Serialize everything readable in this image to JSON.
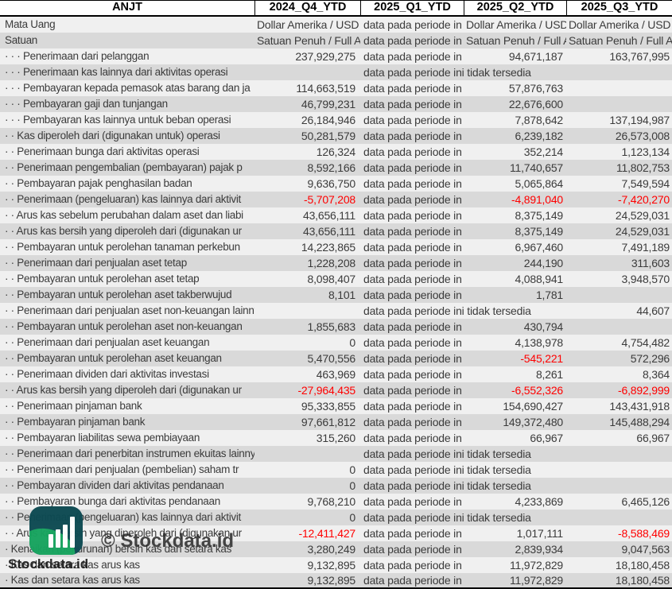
{
  "header": {
    "columns": [
      "ANJT",
      "2024_Q4_YTD",
      "2025_Q1_YTD",
      "2025_Q2_YTD",
      "2025_Q3_YTD"
    ]
  },
  "placeholders": {
    "clipped": "data pada periode in",
    "full": "data pada periode ini tidak tersedia"
  },
  "rows": [
    {
      "label": "Mata Uang",
      "q4": "Dollar Amerika / USD",
      "q1": "data pada periode in",
      "q2": "Dollar Amerika / USD",
      "q3": "Dollar Amerika / USD",
      "text_row": true
    },
    {
      "label": "Satuan",
      "q4": "Satuan Penuh / Full A",
      "q1": "data pada periode in",
      "q2": "Satuan Penuh / Full A",
      "q3": "Satuan Penuh / Full A",
      "text_row": true
    },
    {
      "label": "· · · Penerimaan dari pelanggan",
      "q4": "237,929,275",
      "q1": "data pada periode in",
      "q2": "94,671,187",
      "q3": "163,767,995"
    },
    {
      "label": "· · · Penerimaan kas lainnya dari aktivitas operasi",
      "q4": "",
      "q1": "data pada periode ini tidak tersedia",
      "q2": "",
      "q3": ""
    },
    {
      "label": "· · · Pembayaran kepada pemasok atas barang dan ja",
      "q4": "114,663,519",
      "q1": "data pada periode in",
      "q2": "57,876,763",
      "q3": ""
    },
    {
      "label": "· · · Pembayaran gaji dan tunjangan",
      "q4": "46,799,231",
      "q1": "data pada periode in",
      "q2": "22,676,600",
      "q3": ""
    },
    {
      "label": "· · · Pembayaran kas lainnya untuk beban operasi",
      "q4": "26,184,946",
      "q1": "data pada periode in",
      "q2": "7,878,642",
      "q3": "137,194,987"
    },
    {
      "label": "· · Kas diperoleh dari (digunakan untuk) operasi",
      "q4": "50,281,579",
      "q1": "data pada periode in",
      "q2": "6,239,182",
      "q3": "26,573,008"
    },
    {
      "label": "· · Penerimaan bunga dari aktivitas operasi",
      "q4": "126,324",
      "q1": "data pada periode in",
      "q2": "352,214",
      "q3": "1,123,134"
    },
    {
      "label": "· · Penerimaan pengembalian (pembayaran) pajak p",
      "q4": "8,592,166",
      "q1": "data pada periode in",
      "q2": "11,740,657",
      "q3": "11,802,753"
    },
    {
      "label": "· · Pembayaran pajak penghasilan badan",
      "q4": "9,636,750",
      "q1": "data pada periode in",
      "q2": "5,065,864",
      "q3": "7,549,594"
    },
    {
      "label": "· · Penerimaan (pengeluaran) kas lainnya dari aktivit",
      "q4": "-5,707,208",
      "q1": "data pada periode in",
      "q2": "-4,891,040",
      "q3": "-7,420,270"
    },
    {
      "label": "· · Arus kas sebelum perubahan dalam aset dan liabi",
      "q4": "43,656,111",
      "q1": "data pada periode in",
      "q2": "8,375,149",
      "q3": "24,529,031"
    },
    {
      "label": "· · Arus kas bersih yang diperoleh dari (digunakan ur",
      "q4": "43,656,111",
      "q1": "data pada periode in",
      "q2": "8,375,149",
      "q3": "24,529,031"
    },
    {
      "label": "· · Pembayaran untuk perolehan tanaman perkebun",
      "q4": "14,223,865",
      "q1": "data pada periode in",
      "q2": "6,967,460",
      "q3": "7,491,189"
    },
    {
      "label": "· · Penerimaan dari penjualan aset tetap",
      "q4": "1,228,208",
      "q1": "data pada periode in",
      "q2": "244,190",
      "q3": "311,603"
    },
    {
      "label": "· · Pembayaran untuk perolehan aset tetap",
      "q4": "8,098,407",
      "q1": "data pada periode in",
      "q2": "4,088,941",
      "q3": "3,948,570"
    },
    {
      "label": "· · Pembayaran untuk perolehan aset takberwujud",
      "q4": "8,101",
      "q1": "data pada periode in",
      "q2": "1,781",
      "q3": ""
    },
    {
      "label": "· · Penerimaan dari penjualan aset non-keuangan lainnya",
      "q4": "",
      "q1": "data pada periode ini tidak tersedia",
      "q2": "",
      "q3": "44,607"
    },
    {
      "label": "· · Pembayaran untuk perolehan aset non-keuangan",
      "q4": "1,855,683",
      "q1": "data pada periode in",
      "q2": "430,794",
      "q3": ""
    },
    {
      "label": "· · Penerimaan dari penjualan aset keuangan",
      "q4": "0",
      "q1": "data pada periode in",
      "q2": "4,138,978",
      "q3": "4,754,482"
    },
    {
      "label": "· · Pembayaran untuk perolehan aset keuangan",
      "q4": "5,470,556",
      "q1": "data pada periode in",
      "q2": "-545,221",
      "q3": "572,296"
    },
    {
      "label": "· · Penerimaan dividen dari aktivitas investasi",
      "q4": "463,969",
      "q1": "data pada periode in",
      "q2": "8,261",
      "q3": "8,364"
    },
    {
      "label": "· · Arus kas bersih yang diperoleh dari (digunakan ur",
      "q4": "-27,964,435",
      "q1": "data pada periode in",
      "q2": "-6,552,326",
      "q3": "-6,892,999"
    },
    {
      "label": "· · Penerimaan pinjaman bank",
      "q4": "95,333,855",
      "q1": "data pada periode in",
      "q2": "154,690,427",
      "q3": "143,431,918"
    },
    {
      "label": "· · Pembayaran pinjaman bank",
      "q4": "97,661,812",
      "q1": "data pada periode in",
      "q2": "149,372,480",
      "q3": "145,488,294"
    },
    {
      "label": "· · Pembayaran liabilitas sewa pembiayaan",
      "q4": "315,260",
      "q1": "data pada periode in",
      "q2": "66,967",
      "q3": "66,967"
    },
    {
      "label": "· · Penerimaan dari penerbitan instrumen ekuitas lainnya",
      "q4": "",
      "q1": "data pada periode ini tidak tersedia",
      "q2": "",
      "q3": ""
    },
    {
      "label": "· · Penerimaan dari penjualan (pembelian) saham tr",
      "q4": "0",
      "q1": "data pada periode ini tidak tersedia",
      "q2": "",
      "q3": ""
    },
    {
      "label": "· · Pembayaran dividen dari aktivitas pendanaan",
      "q4": "0",
      "q1": "data pada periode ini tidak tersedia",
      "q2": "",
      "q3": ""
    },
    {
      "label": "· · Pembayaran bunga dari aktivitas pendanaan",
      "q4": "9,768,210",
      "q1": "data pada periode in",
      "q2": "4,233,869",
      "q3": "6,465,126"
    },
    {
      "label": "· · Penerimaan (pengeluaran) kas lainnya dari aktivit",
      "q4": "0",
      "q1": "data pada periode ini tidak tersedia",
      "q2": "",
      "q3": ""
    },
    {
      "label": "· · Arus kas bersih yang diperoleh dari (digunakan ur",
      "q4": "-12,411,427",
      "q1": "data pada periode in",
      "q2": "1,017,111",
      "q3": "-8,588,469"
    },
    {
      "label": "· Kenaikan (penurunan) bersih kas dan setara kas",
      "q4": "3,280,249",
      "q1": "data pada periode in",
      "q2": "2,839,934",
      "q3": "9,047,563"
    },
    {
      "label": "· Kas dan setara kas arus kas",
      "q4": "9,132,895",
      "q1": "data pada periode in",
      "q2": "11,972,829",
      "q3": "18,180,458"
    },
    {
      "label": "· Kas dan setara kas arus kas",
      "q4": "9,132,895",
      "q1": "data pada periode in",
      "q2": "11,972,829",
      "q3": "18,180,458"
    }
  ],
  "watermark": {
    "copyright": "© Stockdata.id",
    "brand": "Stockdata.id",
    "logo_icon": "bar-chart-leaf-icon"
  },
  "colors": {
    "row_light": "#f0f0f0",
    "row_dark": "#d9d9d9",
    "negative": "#ff0000",
    "text": "#3b3b3b",
    "logo_teal": "#0d4a52",
    "logo_green": "#17a45f"
  }
}
